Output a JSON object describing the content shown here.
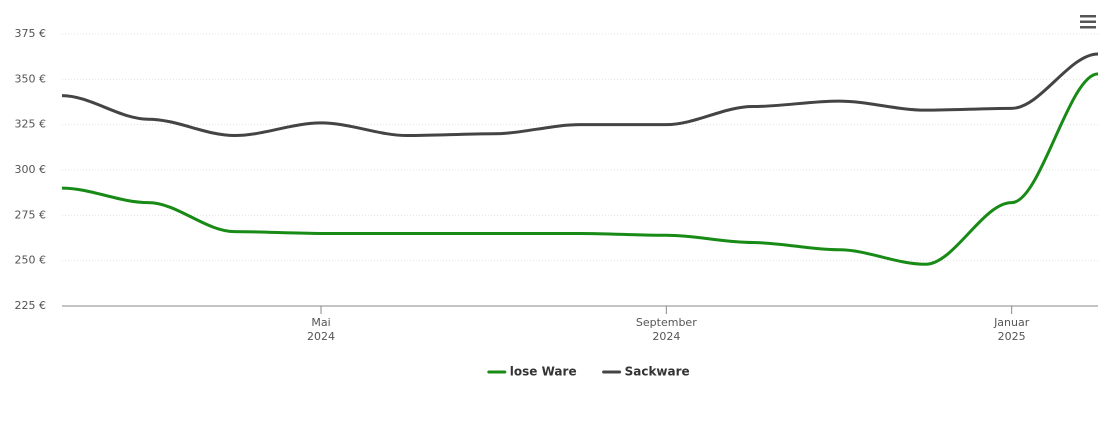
{
  "chart_data": {
    "type": "line",
    "x": [
      "2024-02",
      "2024-03",
      "2024-04",
      "2024-05",
      "2024-06",
      "2024-07",
      "2024-08",
      "2024-09",
      "2024-10",
      "2024-11",
      "2024-12",
      "2025-01",
      "2025-02"
    ],
    "series": [
      {
        "name": "lose Ware",
        "color": "#188a16",
        "values": [
          290,
          282,
          266,
          265,
          265,
          265,
          265,
          264,
          260,
          256,
          248,
          282,
          353
        ]
      },
      {
        "name": "Sackware",
        "color": "#444444",
        "values": [
          341,
          328,
          319,
          326,
          319,
          320,
          325,
          325,
          335,
          338,
          333,
          334,
          364
        ]
      }
    ],
    "xlim": [
      "2024-02",
      "2025-02"
    ],
    "xticks": [
      {
        "value": "2024-05",
        "label": [
          "Mai",
          "2024"
        ]
      },
      {
        "value": "2024-09",
        "label": [
          "September",
          "2024"
        ]
      },
      {
        "value": "2025-01",
        "label": [
          "Januar",
          "2025"
        ]
      }
    ],
    "ylim": [
      225,
      375
    ],
    "yticks": [
      {
        "value": 225,
        "label": "225 €"
      },
      {
        "value": 250,
        "label": "250 €"
      },
      {
        "value": 275,
        "label": "275 €"
      },
      {
        "value": 300,
        "label": "300 €"
      },
      {
        "value": 325,
        "label": "325 €"
      },
      {
        "value": 350,
        "label": "350 €"
      },
      {
        "value": 375,
        "label": "375 €"
      }
    ],
    "grid": true,
    "legend": "bottom"
  }
}
